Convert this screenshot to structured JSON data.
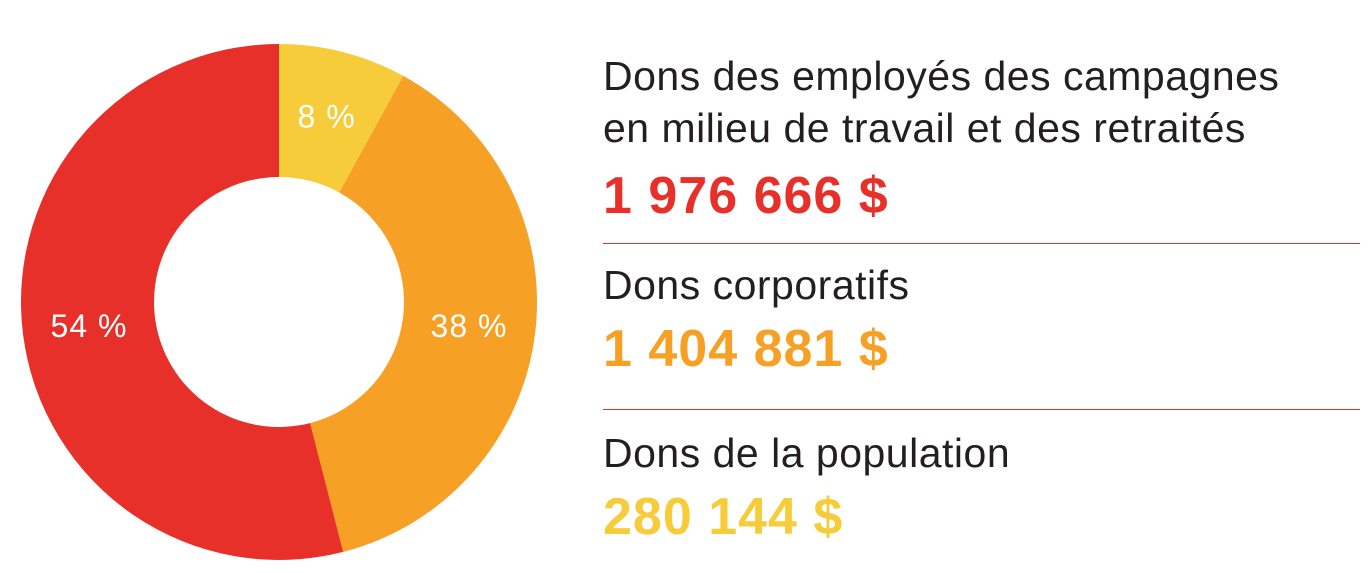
{
  "chart_data": {
    "type": "pie",
    "variant": "donut",
    "slices": [
      {
        "label": "8 %",
        "value": 8,
        "color": "#f7cc3a"
      },
      {
        "label": "38 %",
        "value": 38,
        "color": "#f6a126"
      },
      {
        "label": "54 %",
        "value": 54,
        "color": "#e8302a"
      }
    ],
    "legend_placement": "right"
  },
  "legend": {
    "entries": [
      {
        "name": "Dons des employés des campagnes en milieu de travail et des retraités",
        "name_line1": "Dons des employés des campagnes",
        "name_line2": "en milieu de travail et des retraités",
        "amount": "1 976 666 $",
        "color": "#e8302a"
      },
      {
        "name": "Dons corporatifs",
        "amount": "1 404 881 $",
        "color": "#f6a126"
      },
      {
        "name": "Dons de la population",
        "amount": "280 144 $",
        "color": "#f7cc3a"
      }
    ],
    "divider_color": "#e8302a"
  }
}
